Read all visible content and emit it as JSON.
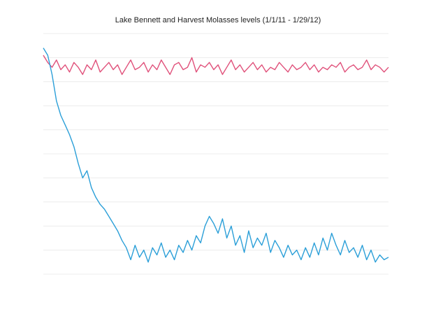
{
  "chart_data": {
    "type": "line",
    "title": "Lake Bennett and Harvest Molasses levels (1/1/11 - 1/29/12)",
    "xlabel": "",
    "ylabel": "",
    "grid": true,
    "ylim": [
      0,
      10
    ],
    "x": [
      0,
      5,
      10,
      15,
      20,
      25,
      30,
      35,
      40,
      45,
      50,
      55,
      60,
      65,
      70,
      75,
      80,
      85,
      90,
      95,
      100,
      105,
      110,
      115,
      120,
      125,
      130,
      135,
      140,
      145,
      150,
      155,
      160,
      165,
      170,
      175,
      180,
      185,
      190,
      195,
      200,
      205,
      210,
      215,
      220,
      225,
      230,
      235,
      240,
      245,
      250,
      255,
      260,
      265,
      270,
      275,
      280,
      285,
      290,
      295,
      300,
      305,
      310,
      315,
      320,
      325,
      330,
      335,
      340,
      345,
      350,
      355,
      360,
      365,
      370,
      375,
      380,
      385,
      390,
      395
    ],
    "series": [
      {
        "name": "",
        "color": "#e0507a",
        "values": [
          9.1,
          8.8,
          8.6,
          8.9,
          8.5,
          8.7,
          8.4,
          8.8,
          8.6,
          8.3,
          8.7,
          8.5,
          8.9,
          8.4,
          8.6,
          8.8,
          8.5,
          8.7,
          8.3,
          8.6,
          8.9,
          8.5,
          8.6,
          8.8,
          8.4,
          8.7,
          8.5,
          8.9,
          8.6,
          8.3,
          8.7,
          8.8,
          8.5,
          8.6,
          9.0,
          8.4,
          8.7,
          8.6,
          8.8,
          8.5,
          8.7,
          8.3,
          8.6,
          8.9,
          8.5,
          8.7,
          8.4,
          8.6,
          8.8,
          8.5,
          8.7,
          8.4,
          8.6,
          8.5,
          8.8,
          8.6,
          8.4,
          8.7,
          8.5,
          8.6,
          8.8,
          8.5,
          8.7,
          8.4,
          8.6,
          8.5,
          8.7,
          8.6,
          8.8,
          8.4,
          8.6,
          8.7,
          8.5,
          8.6,
          8.9,
          8.5,
          8.7,
          8.6,
          8.4,
          8.6
        ]
      },
      {
        "name": "",
        "color": "#2b9fd8",
        "values": [
          9.4,
          9.1,
          8.3,
          7.2,
          6.6,
          6.2,
          5.8,
          5.3,
          4.6,
          4.0,
          4.3,
          3.6,
          3.2,
          2.9,
          2.7,
          2.4,
          2.1,
          1.8,
          1.4,
          1.1,
          0.6,
          1.2,
          0.7,
          1.0,
          0.5,
          1.1,
          0.8,
          1.3,
          0.7,
          1.0,
          0.6,
          1.2,
          0.9,
          1.4,
          1.0,
          1.6,
          1.3,
          2.0,
          2.4,
          2.1,
          1.7,
          2.3,
          1.5,
          2.0,
          1.2,
          1.6,
          0.9,
          1.8,
          1.1,
          1.5,
          1.2,
          1.7,
          0.9,
          1.4,
          1.1,
          0.7,
          1.2,
          0.8,
          1.0,
          0.6,
          1.1,
          0.7,
          1.3,
          0.8,
          1.5,
          1.0,
          1.7,
          1.2,
          0.8,
          1.4,
          0.9,
          1.1,
          0.7,
          1.2,
          0.6,
          1.0,
          0.5,
          0.8,
          0.6,
          0.7
        ]
      }
    ]
  }
}
